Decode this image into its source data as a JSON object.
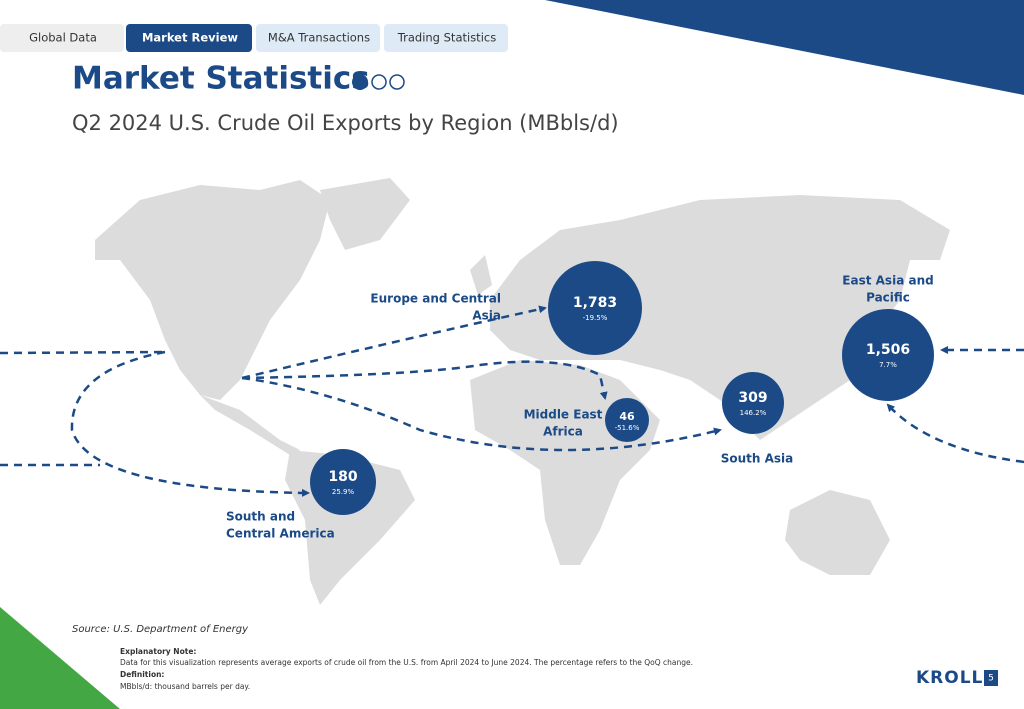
{
  "tabs": [
    "Global Data",
    "Market Review",
    "M&A Transactions",
    "Trading Statistics"
  ],
  "header": {
    "title": "Market Statistics",
    "subtitle": "Q2 2024 U.S. Crude Oil Exports by Region (MBbls/d)"
  },
  "regions": [
    {
      "label": [
        "Europe and Central",
        "Asia"
      ],
      "value": "1,783",
      "change": "-19.5%"
    },
    {
      "label": [
        "East Asia and",
        "Pacific"
      ],
      "value": "1,506",
      "change": "7.7%"
    },
    {
      "label": [
        "South Asia"
      ],
      "value": "309",
      "change": "146.2%"
    },
    {
      "label": [
        "Middle East",
        "Africa"
      ],
      "value": "46",
      "change": "-51.6%"
    },
    {
      "label": [
        "South and",
        "Central America"
      ],
      "value": "180",
      "change": "25.9%"
    }
  ],
  "footer": {
    "source": "Source: U.S. Department of Energy"
  },
  "notes": {
    "explanatory_heading": "Explanatory Note:",
    "explanatory_text": "Data for this visualization represents average exports of crude oil from the U.S. from April 2024 to June 2024. The percentage refers to the QoQ change.",
    "definition_heading": "Definition:",
    "definition_text": "MBbls/d: thousand barrels per day."
  },
  "logo": "KROLL",
  "page_number": "5"
}
